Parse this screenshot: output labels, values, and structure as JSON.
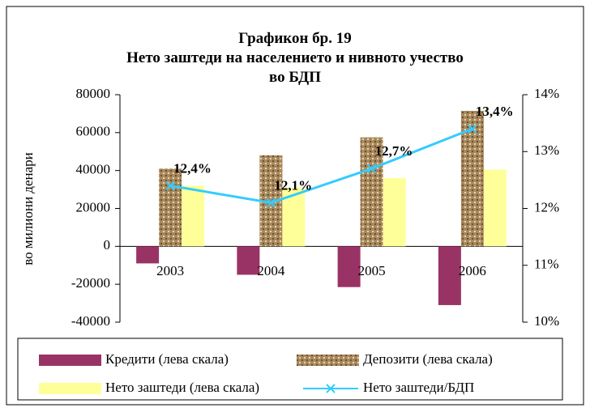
{
  "chart_data": {
    "type": "bar",
    "title": "Графикон бр. 19",
    "subtitle": "Нето заштеди на населението и нивното учество во БДП",
    "y_label": "во милиони денари",
    "categories": [
      "2003",
      "2004",
      "2005",
      "2006"
    ],
    "series": [
      {
        "name": "Кредити (лева скала)",
        "color": "#993366",
        "values": [
          -9000,
          -15000,
          -21500,
          -31000
        ]
      },
      {
        "name": "Депозити (лева скала)",
        "color": "#a8885c",
        "values": [
          41000,
          48000,
          57500,
          71500
        ]
      },
      {
        "name": "Нето заштеди (лева скала)",
        "color": "#ffff99",
        "values": [
          32000,
          31000,
          36000,
          40500
        ]
      },
      {
        "name": "Нето заштеди/БДП",
        "color": "#33ccff",
        "type": "line",
        "axis": "y2",
        "values": [
          12.4,
          12.1,
          12.7,
          13.4
        ],
        "value_labels": [
          "12,4%",
          "12,1%",
          "12,7%",
          "13,4%"
        ]
      }
    ],
    "ylim": [
      -40000,
      80000
    ],
    "yticks": [
      -40000,
      -20000,
      0,
      20000,
      40000,
      60000,
      80000
    ],
    "y2lim": [
      10,
      14
    ],
    "y2ticks": [
      {
        "value": 10,
        "label": "10%"
      },
      {
        "value": 11,
        "label": "11%"
      },
      {
        "value": 12,
        "label": "12%"
      },
      {
        "value": 13,
        "label": "13%"
      },
      {
        "value": 14,
        "label": "14%"
      }
    ],
    "legend": "bottom"
  }
}
